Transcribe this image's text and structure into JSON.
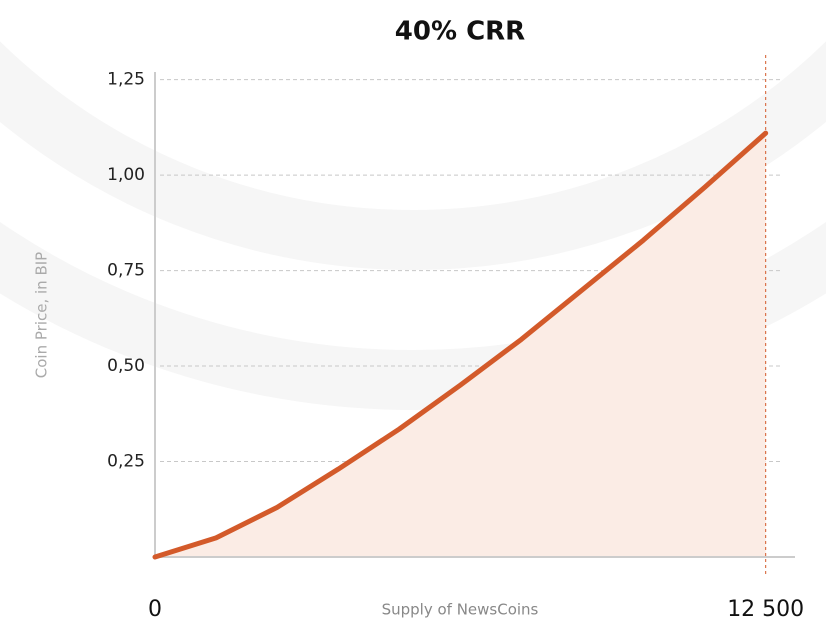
{
  "chart_data": {
    "type": "area",
    "title": "40% CRR",
    "x_label": "Supply of NewsCoins",
    "y_label": "Coin Price, in BIP",
    "x": [
      0,
      1250,
      2500,
      3750,
      5000,
      6250,
      7500,
      8750,
      10000,
      11250,
      12500
    ],
    "values": [
      0,
      0.05,
      0.13,
      0.23,
      0.335,
      0.45,
      0.57,
      0.7,
      0.83,
      0.968,
      1.11
    ],
    "color": "#d35a2a",
    "fill": "#fbece5",
    "xlim": [
      0,
      13100
    ],
    "xticks": [
      0,
      {
        "value": 12500,
        "label": "12 500"
      }
    ],
    "ylim": [
      0,
      1.27
    ],
    "yticks": [
      {
        "value": 0.25,
        "label": "0,25"
      },
      {
        "value": 0.5,
        "label": "0,50"
      },
      {
        "value": 0.75,
        "label": "0,75"
      },
      {
        "value": 1,
        "label": "1,00"
      },
      {
        "value": 1.25,
        "label": "1,25"
      }
    ],
    "grid": true
  }
}
